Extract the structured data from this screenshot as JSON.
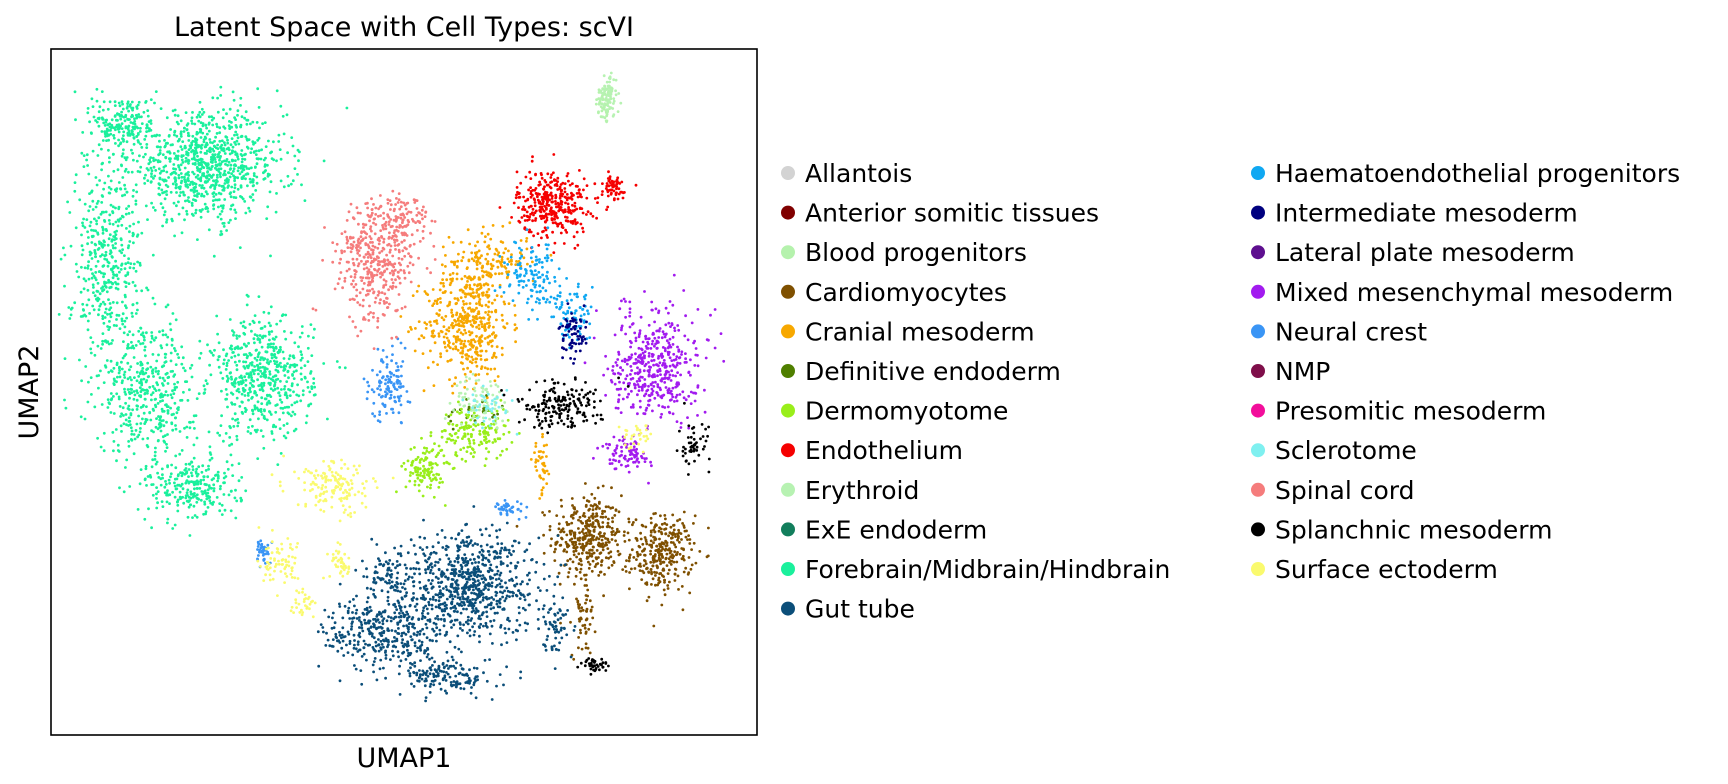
{
  "chart_data": {
    "type": "scatter",
    "title": "Latent Space with Cell Types: scVI",
    "xlabel": "UMAP1",
    "ylabel": "UMAP2",
    "xticks": [],
    "yticks": [],
    "xlim": [
      0,
      10
    ],
    "ylim": [
      0,
      10
    ],
    "grid": false,
    "legend_position": "right",
    "legend_columns": 2,
    "series": [
      {
        "name": "Allantois",
        "color": "#d3d3d3",
        "clusters": []
      },
      {
        "name": "Anterior somitic tissues",
        "color": "#800000",
        "clusters": []
      },
      {
        "name": "Blood progenitors",
        "color": "#b5f2ad",
        "clusters": [
          [
            7.85,
            9.2,
            0.12,
            0.28,
            60
          ]
        ]
      },
      {
        "name": "Cardiomyocytes",
        "color": "#7f5000",
        "clusters": [
          [
            7.6,
            2.9,
            0.45,
            0.55,
            350
          ],
          [
            8.65,
            2.65,
            0.4,
            0.5,
            300
          ],
          [
            7.55,
            1.8,
            0.15,
            0.6,
            60
          ]
        ]
      },
      {
        "name": "Cranial mesoderm",
        "color": "#f7a800",
        "clusters": [
          [
            5.9,
            6.0,
            0.55,
            0.75,
            450
          ],
          [
            6.2,
            6.9,
            0.5,
            0.4,
            150
          ],
          [
            6.95,
            3.9,
            0.12,
            0.35,
            40
          ]
        ]
      },
      {
        "name": "Definitive endoderm",
        "color": "#4f7f00",
        "clusters": [
          [
            6.0,
            4.7,
            0.4,
            0.25,
            30
          ]
        ]
      },
      {
        "name": "Dermomyotome",
        "color": "#99ee1a",
        "clusters": [
          [
            5.3,
            3.9,
            0.25,
            0.35,
            120
          ],
          [
            6.0,
            4.4,
            0.45,
            0.35,
            150
          ]
        ]
      },
      {
        "name": "Endothelium",
        "color": "#f50000",
        "clusters": [
          [
            7.1,
            7.75,
            0.45,
            0.45,
            350
          ],
          [
            7.95,
            7.95,
            0.22,
            0.2,
            60
          ]
        ]
      },
      {
        "name": "Erythroid",
        "color": "#b7f2b2",
        "clusters": [
          [
            6.1,
            4.9,
            0.35,
            0.3,
            80
          ],
          [
            7.9,
            9.35,
            0.12,
            0.3,
            60
          ]
        ]
      },
      {
        "name": "ExE endoderm",
        "color": "#127e5c",
        "clusters": []
      },
      {
        "name": "Forebrain/Midbrain/Hindbrain",
        "color": "#1af09c",
        "clusters": [
          [
            2.2,
            8.3,
            1.0,
            0.7,
            900
          ],
          [
            0.8,
            6.8,
            0.45,
            1.5,
            450
          ],
          [
            3.0,
            5.2,
            0.65,
            0.8,
            550
          ],
          [
            1.4,
            5.0,
            0.6,
            0.9,
            400
          ],
          [
            2.0,
            3.6,
            0.6,
            0.45,
            250
          ],
          [
            1.05,
            8.9,
            0.4,
            0.4,
            200
          ]
        ]
      },
      {
        "name": "Gut tube",
        "color": "#0b4e79",
        "clusters": [
          [
            5.9,
            2.2,
            0.85,
            0.7,
            750
          ],
          [
            4.7,
            1.5,
            0.75,
            0.5,
            350
          ],
          [
            5.6,
            0.85,
            0.6,
            0.25,
            150
          ],
          [
            4.8,
            2.3,
            0.4,
            0.3,
            80
          ],
          [
            7.15,
            1.6,
            0.15,
            0.4,
            60
          ]
        ]
      },
      {
        "name": "Haematoendothelial progenitors",
        "color": "#10a8f2",
        "clusters": [
          [
            6.8,
            6.7,
            0.35,
            0.45,
            120
          ],
          [
            7.4,
            6.1,
            0.3,
            0.4,
            80
          ]
        ]
      },
      {
        "name": "Intermediate mesoderm",
        "color": "#00007f",
        "clusters": [
          [
            7.4,
            5.8,
            0.17,
            0.3,
            70
          ]
        ]
      },
      {
        "name": "Lateral plate mesoderm",
        "color": "#5e0f8f",
        "clusters": []
      },
      {
        "name": "Mixed mesenchymal mesoderm",
        "color": "#a21bef",
        "clusters": [
          [
            8.55,
            5.4,
            0.55,
            0.75,
            450
          ],
          [
            8.15,
            4.1,
            0.3,
            0.25,
            80
          ]
        ]
      },
      {
        "name": "Neural crest",
        "color": "#3a95f5",
        "clusters": [
          [
            4.8,
            5.1,
            0.25,
            0.45,
            120
          ],
          [
            3.0,
            2.7,
            0.12,
            0.2,
            40
          ],
          [
            6.5,
            3.3,
            0.2,
            0.1,
            40
          ]
        ]
      },
      {
        "name": "NMP",
        "color": "#7f0f4a",
        "clusters": []
      },
      {
        "name": "Presomitic mesoderm",
        "color": "#f20e9b",
        "clusters": []
      },
      {
        "name": "Sclerotome",
        "color": "#7ff0f0",
        "clusters": [
          [
            6.2,
            4.8,
            0.3,
            0.3,
            40
          ]
        ]
      },
      {
        "name": "Spinal cord",
        "color": "#f57c7c",
        "clusters": [
          [
            4.6,
            6.9,
            0.5,
            0.8,
            400
          ],
          [
            5.0,
            7.5,
            0.3,
            0.4,
            100
          ]
        ]
      },
      {
        "name": "Splanchnic mesoderm",
        "color": "#000000",
        "clusters": [
          [
            7.2,
            4.8,
            0.55,
            0.3,
            180
          ],
          [
            7.7,
            1.0,
            0.2,
            0.1,
            40
          ],
          [
            9.1,
            4.2,
            0.2,
            0.3,
            50
          ]
        ]
      },
      {
        "name": "Surface ectoderm",
        "color": "#fafa6e",
        "clusters": [
          [
            4.0,
            3.6,
            0.5,
            0.35,
            150
          ],
          [
            3.3,
            2.5,
            0.3,
            0.3,
            70
          ],
          [
            4.1,
            2.5,
            0.15,
            0.2,
            40
          ],
          [
            3.6,
            1.9,
            0.2,
            0.2,
            30
          ],
          [
            8.3,
            4.3,
            0.2,
            0.2,
            30
          ]
        ]
      }
    ]
  }
}
